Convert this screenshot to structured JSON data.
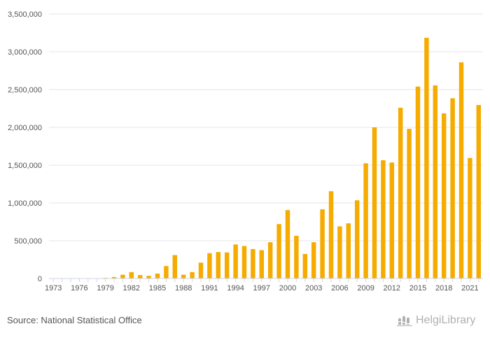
{
  "chart_data": {
    "type": "bar",
    "years": [
      1973,
      1974,
      1975,
      1976,
      1977,
      1978,
      1979,
      1980,
      1981,
      1982,
      1983,
      1984,
      1985,
      1986,
      1987,
      1988,
      1989,
      1990,
      1991,
      1992,
      1993,
      1994,
      1995,
      1996,
      1997,
      1998,
      1999,
      2000,
      2001,
      2002,
      2003,
      2004,
      2005,
      2006,
      2007,
      2008,
      2009,
      2010,
      2011,
      2012,
      2013,
      2014,
      2015,
      2016,
      2017,
      2018,
      2019,
      2020,
      2021,
      2022
    ],
    "values": [
      0,
      0,
      0,
      0,
      0,
      0,
      8000,
      20000,
      50000,
      85000,
      45000,
      35000,
      65000,
      165000,
      310000,
      50000,
      85000,
      210000,
      335000,
      350000,
      345000,
      450000,
      430000,
      390000,
      375000,
      480000,
      720000,
      905000,
      565000,
      325000,
      480000,
      915000,
      1155000,
      690000,
      730000,
      1035000,
      1525000,
      2000000,
      1565000,
      1535000,
      2260000,
      1980000,
      2540000,
      3185000,
      2555000,
      2185000,
      2385000,
      2860000,
      1595000,
      2295000
    ],
    "x_tick_labels": [
      "1973",
      "1976",
      "1979",
      "1982",
      "1985",
      "1988",
      "1991",
      "1994",
      "1997",
      "2000",
      "2003",
      "2006",
      "2009",
      "2012",
      "2015",
      "2018",
      "2021"
    ],
    "y_tick_labels": [
      "0",
      "500,000",
      "1,000,000",
      "1,500,000",
      "2,000,000",
      "2,500,000",
      "3,000,000",
      "3,500,000"
    ],
    "ylim": [
      0,
      3500000
    ],
    "grid": true,
    "bar_color": "#f5ab00",
    "title": "",
    "xlabel": "",
    "ylabel": ""
  },
  "footer": {
    "source": "Source: National Statistical Office",
    "brand": "HelgiLibrary"
  },
  "brand_icon": "helgi-library-logo-icon"
}
